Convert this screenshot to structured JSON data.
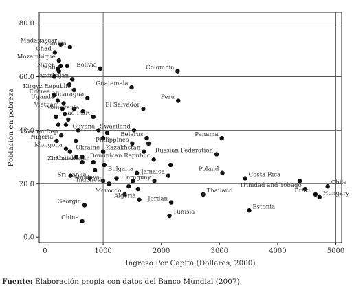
{
  "chart_data": {
    "type": "scatter",
    "title": "",
    "xlabel": "Ingreso Per Capita (Dollares, 2000)",
    "ylabel": "Población en pobreza",
    "xlim": [
      -100,
      5100
    ],
    "ylim": [
      -2,
      84
    ],
    "x_ticks": [
      "0",
      "1000",
      "2000",
      "3000",
      "4000",
      "5000"
    ],
    "x_tick_values": [
      0,
      1000,
      2000,
      3000,
      4000,
      5000
    ],
    "y_ticks": [
      "0.0",
      "20.0",
      "40.0",
      "60.0",
      "80.0"
    ],
    "y_tick_values": [
      0,
      20,
      40,
      60,
      80
    ],
    "grid": "lines at x = 1000 and 5000, y = 20, 40, 60, 80",
    "marker_color": "#111111",
    "points": [
      {
        "x": 270,
        "y": 72,
        "label": "Madagascar"
      },
      {
        "x": 430,
        "y": 71,
        "label": "Zambia"
      },
      {
        "x": 170,
        "y": 69,
        "label": "Chad"
      },
      {
        "x": 240,
        "y": 66,
        "label": "Mozambique"
      },
      {
        "x": 220,
        "y": 63,
        "label": "Niger"
      },
      {
        "x": 270,
        "y": 64,
        "label": ""
      },
      {
        "x": 380,
        "y": 64,
        "label": ""
      },
      {
        "x": 240,
        "y": 62,
        "label": "Mali"
      },
      {
        "x": 950,
        "y": 63,
        "label": "Bolivia"
      },
      {
        "x": 2280,
        "y": 62,
        "label": "Colombia"
      },
      {
        "x": 470,
        "y": 59,
        "label": "Azerbajan"
      },
      {
        "x": 160,
        "y": 60,
        "label": ""
      },
      {
        "x": 420,
        "y": 57,
        "label": ""
      },
      {
        "x": 1490,
        "y": 56,
        "label": "Guatemala"
      },
      {
        "x": 500,
        "y": 55,
        "label": "Kirgyz Republic"
      },
      {
        "x": 150,
        "y": 53,
        "label": "Eritrea"
      },
      {
        "x": 730,
        "y": 52,
        "label": "Nicaragua"
      },
      {
        "x": 220,
        "y": 51,
        "label": "Uganda"
      },
      {
        "x": 320,
        "y": 50,
        "label": ""
      },
      {
        "x": 2290,
        "y": 51,
        "label": "Perú"
      },
      {
        "x": 300,
        "y": 48,
        "label": "Vietnam"
      },
      {
        "x": 500,
        "y": 48,
        "label": ""
      },
      {
        "x": 650,
        "y": 47,
        "label": "Mauritania"
      },
      {
        "x": 1690,
        "y": 48,
        "label": "El Salvador"
      },
      {
        "x": 340,
        "y": 46,
        "label": ""
      },
      {
        "x": 190,
        "y": 45,
        "label": ""
      },
      {
        "x": 400,
        "y": 44,
        "label": ""
      },
      {
        "x": 830,
        "y": 45,
        "label": "Lao PDR"
      },
      {
        "x": 230,
        "y": 42,
        "label": ""
      },
      {
        "x": 360,
        "y": 42,
        "label": ""
      },
      {
        "x": 570,
        "y": 40,
        "label": ""
      },
      {
        "x": 920,
        "y": 40,
        "label": "Guyana"
      },
      {
        "x": 1070,
        "y": 39,
        "label": ""
      },
      {
        "x": 1530,
        "y": 40,
        "label": "Swaziland"
      },
      {
        "x": 280,
        "y": 38,
        "label": "Yemen Rep"
      },
      {
        "x": 1000,
        "y": 37,
        "label": ""
      },
      {
        "x": 1750,
        "y": 37,
        "label": "Belarus"
      },
      {
        "x": 3040,
        "y": 37,
        "label": "Panama"
      },
      {
        "x": 200,
        "y": 36,
        "label": "Nigeria"
      },
      {
        "x": 530,
        "y": 36,
        "label": ""
      },
      {
        "x": 1500,
        "y": 35,
        "label": "Philippines"
      },
      {
        "x": 1780,
        "y": 35,
        "label": ""
      },
      {
        "x": 360,
        "y": 33,
        "label": "Mongolia"
      },
      {
        "x": 430,
        "y": 32,
        "label": ""
      },
      {
        "x": 1000,
        "y": 32,
        "label": "Ukraine"
      },
      {
        "x": 1700,
        "y": 32,
        "label": "Kazakhstan"
      },
      {
        "x": 2950,
        "y": 31,
        "label": "Russian Federation"
      },
      {
        "x": 540,
        "y": 30,
        "label": ""
      },
      {
        "x": 640,
        "y": 30,
        "label": ""
      },
      {
        "x": 1870,
        "y": 29,
        "label": "Dominican Republic"
      },
      {
        "x": 640,
        "y": 28,
        "label": "Zimbabwe"
      },
      {
        "x": 830,
        "y": 28,
        "label": "Uzbekistan"
      },
      {
        "x": 1020,
        "y": 27,
        "label": ""
      },
      {
        "x": 2160,
        "y": 27,
        "label": ""
      },
      {
        "x": 860,
        "y": 25,
        "label": ""
      },
      {
        "x": 1580,
        "y": 24,
        "label": "Bulgaria"
      },
      {
        "x": 3050,
        "y": 24,
        "label": "Poland"
      },
      {
        "x": 2120,
        "y": 23,
        "label": "Jamaica"
      },
      {
        "x": 440,
        "y": 23,
        "label": ""
      },
      {
        "x": 770,
        "y": 22,
        "label": "Sri Lanka"
      },
      {
        "x": 1230,
        "y": 22,
        "label": ""
      },
      {
        "x": 1510,
        "y": 21,
        "label": ""
      },
      {
        "x": 3440,
        "y": 22,
        "label": "Costa Rica"
      },
      {
        "x": 1000,
        "y": 21,
        "label": "Moldova"
      },
      {
        "x": 1880,
        "y": 21,
        "label": "Paraguay"
      },
      {
        "x": 4380,
        "y": 21,
        "label": ""
      },
      {
        "x": 1100,
        "y": 20,
        "label": "Indonesia"
      },
      {
        "x": 1440,
        "y": 19,
        "label": ""
      },
      {
        "x": 4860,
        "y": 19,
        "label": "Chile"
      },
      {
        "x": 1600,
        "y": 18,
        "label": ""
      },
      {
        "x": 4470,
        "y": 18,
        "label": "Trinidad and Tobago"
      },
      {
        "x": 1370,
        "y": 16,
        "label": "Morocco"
      },
      {
        "x": 2720,
        "y": 16,
        "label": "Thailand"
      },
      {
        "x": 4650,
        "y": 16,
        "label": "Brazil"
      },
      {
        "x": 1620,
        "y": 14,
        "label": "Algeria"
      },
      {
        "x": 2170,
        "y": 13,
        "label": "Jordan"
      },
      {
        "x": 4720,
        "y": 15,
        "label": "Hungary"
      },
      {
        "x": 680,
        "y": 12,
        "label": "Georgia"
      },
      {
        "x": 3510,
        "y": 10,
        "label": "Estonia"
      },
      {
        "x": 2140,
        "y": 8,
        "label": "Tunisia"
      },
      {
        "x": 640,
        "y": 6,
        "label": "China"
      }
    ]
  },
  "source_note": {
    "lead": "Fuente:",
    "text": " Elaboración propia con datos del Banco Mundial (2007)."
  }
}
